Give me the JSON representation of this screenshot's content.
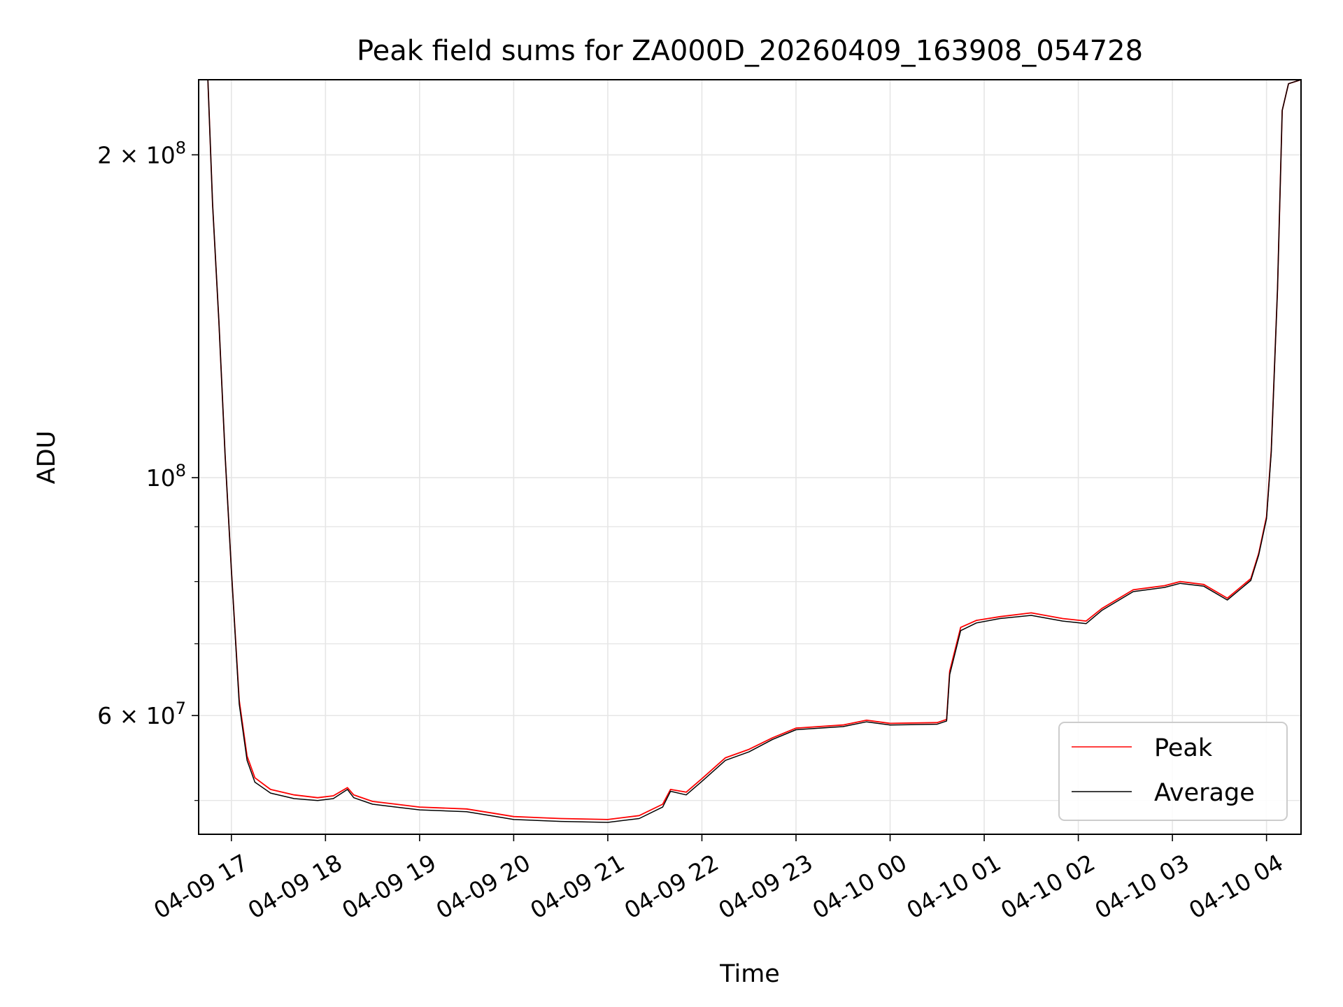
{
  "chart_data": {
    "type": "line",
    "title": "Peak field sums for ZA000D_20260409_163908_054728",
    "xlabel": "Time",
    "ylabel": "ADU",
    "yscale": "log",
    "xlim": [
      "2026-04-09T16:39:08",
      "2026-04-10T04:22:00"
    ],
    "ylim": [
      46500000,
      235000000
    ],
    "grid": true,
    "legend_position": "lower-right",
    "x_ticks": [
      {
        "t": "2026-04-09T17:00",
        "label": "04-09 17"
      },
      {
        "t": "2026-04-09T18:00",
        "label": "04-09 18"
      },
      {
        "t": "2026-04-09T19:00",
        "label": "04-09 19"
      },
      {
        "t": "2026-04-09T20:00",
        "label": "04-09 20"
      },
      {
        "t": "2026-04-09T21:00",
        "label": "04-09 21"
      },
      {
        "t": "2026-04-09T22:00",
        "label": "04-09 22"
      },
      {
        "t": "2026-04-09T23:00",
        "label": "04-09 23"
      },
      {
        "t": "2026-04-10T00:00",
        "label": "04-10 00"
      },
      {
        "t": "2026-04-10T01:00",
        "label": "04-10 01"
      },
      {
        "t": "2026-04-10T02:00",
        "label": "04-10 02"
      },
      {
        "t": "2026-04-10T03:00",
        "label": "04-10 03"
      },
      {
        "t": "2026-04-10T04:00",
        "label": "04-10 04"
      }
    ],
    "y_major_ticks": [
      {
        "value": 60000000,
        "mantissa": "6",
        "exp": "7"
      },
      {
        "value": 100000000,
        "mantissa": "",
        "exp": "8"
      },
      {
        "value": 200000000,
        "mantissa": "2",
        "exp": "8"
      }
    ],
    "y_minor_ticks": [
      50000000,
      70000000,
      80000000,
      90000000
    ],
    "series": [
      {
        "name": "Peak",
        "color": "#ff0000",
        "points": [
          [
            "2026-04-09T16:39:08",
            235000000
          ],
          [
            "2026-04-09T16:45",
            235000000
          ],
          [
            "2026-04-09T16:48",
            180000000
          ],
          [
            "2026-04-09T16:52",
            140000000
          ],
          [
            "2026-04-09T16:56",
            105000000
          ],
          [
            "2026-04-09T17:00",
            82000000
          ],
          [
            "2026-04-09T17:05",
            62000000
          ],
          [
            "2026-04-09T17:10",
            55000000
          ],
          [
            "2026-04-09T17:15",
            52500000
          ],
          [
            "2026-04-09T17:25",
            51200000
          ],
          [
            "2026-04-09T17:40",
            50600000
          ],
          [
            "2026-04-09T17:55",
            50300000
          ],
          [
            "2026-04-09T18:05",
            50500000
          ],
          [
            "2026-04-09T18:14",
            51400000
          ],
          [
            "2026-04-09T18:18",
            50600000
          ],
          [
            "2026-04-09T18:30",
            49900000
          ],
          [
            "2026-04-09T18:45",
            49600000
          ],
          [
            "2026-04-09T19:00",
            49300000
          ],
          [
            "2026-04-09T19:30",
            49100000
          ],
          [
            "2026-04-09T19:45",
            48700000
          ],
          [
            "2026-04-09T20:00",
            48300000
          ],
          [
            "2026-04-09T20:30",
            48100000
          ],
          [
            "2026-04-09T21:00",
            48000000
          ],
          [
            "2026-04-09T21:20",
            48400000
          ],
          [
            "2026-04-09T21:35",
            49600000
          ],
          [
            "2026-04-09T21:40",
            51200000
          ],
          [
            "2026-04-09T21:50",
            50900000
          ],
          [
            "2026-04-09T22:00",
            52400000
          ],
          [
            "2026-04-09T22:15",
            54800000
          ],
          [
            "2026-04-09T22:30",
            55800000
          ],
          [
            "2026-04-09T22:45",
            57200000
          ],
          [
            "2026-04-09T23:00",
            58400000
          ],
          [
            "2026-04-09T23:30",
            58800000
          ],
          [
            "2026-04-09T23:45",
            59400000
          ],
          [
            "2026-04-10T00:00",
            59000000
          ],
          [
            "2026-04-10T00:30",
            59100000
          ],
          [
            "2026-04-10T00:36",
            59500000
          ],
          [
            "2026-04-10T00:38",
            66000000
          ],
          [
            "2026-04-10T00:45",
            72500000
          ],
          [
            "2026-04-10T00:55",
            73600000
          ],
          [
            "2026-04-10T01:10",
            74200000
          ],
          [
            "2026-04-10T01:30",
            74800000
          ],
          [
            "2026-04-10T01:50",
            73900000
          ],
          [
            "2026-04-10T02:05",
            73500000
          ],
          [
            "2026-04-10T02:15",
            75500000
          ],
          [
            "2026-04-10T02:35",
            78600000
          ],
          [
            "2026-04-10T02:55",
            79300000
          ],
          [
            "2026-04-10T03:05",
            80000000
          ],
          [
            "2026-04-10T03:20",
            79500000
          ],
          [
            "2026-04-10T03:35",
            77200000
          ],
          [
            "2026-04-10T03:50",
            80500000
          ],
          [
            "2026-04-10T03:55",
            85000000
          ],
          [
            "2026-04-10T04:00",
            92000000
          ],
          [
            "2026-04-10T04:03",
            106000000
          ],
          [
            "2026-04-10T04:07",
            150000000
          ],
          [
            "2026-04-10T04:10",
            220000000
          ],
          [
            "2026-04-10T04:14",
            233000000
          ],
          [
            "2026-04-10T04:22",
            235000000
          ]
        ]
      },
      {
        "name": "Average",
        "color": "#000000",
        "points": [
          [
            "2026-04-09T16:39:08",
            235000000
          ],
          [
            "2026-04-09T16:45",
            235000000
          ],
          [
            "2026-04-09T16:48",
            180000000
          ],
          [
            "2026-04-09T16:52",
            140000000
          ],
          [
            "2026-04-09T16:56",
            105000000
          ],
          [
            "2026-04-09T17:00",
            82000000
          ],
          [
            "2026-04-09T17:05",
            61500000
          ],
          [
            "2026-04-09T17:10",
            54500000
          ],
          [
            "2026-04-09T17:15",
            52000000
          ],
          [
            "2026-04-09T17:25",
            50800000
          ],
          [
            "2026-04-09T17:40",
            50200000
          ],
          [
            "2026-04-09T17:55",
            50000000
          ],
          [
            "2026-04-09T18:05",
            50200000
          ],
          [
            "2026-04-09T18:14",
            51200000
          ],
          [
            "2026-04-09T18:18",
            50300000
          ],
          [
            "2026-04-09T18:30",
            49600000
          ],
          [
            "2026-04-09T18:45",
            49300000
          ],
          [
            "2026-04-09T19:00",
            49000000
          ],
          [
            "2026-04-09T19:30",
            48800000
          ],
          [
            "2026-04-09T19:45",
            48400000
          ],
          [
            "2026-04-09T20:00",
            48000000
          ],
          [
            "2026-04-09T20:30",
            47800000
          ],
          [
            "2026-04-09T21:00",
            47700000
          ],
          [
            "2026-04-09T21:20",
            48100000
          ],
          [
            "2026-04-09T21:35",
            49300000
          ],
          [
            "2026-04-09T21:40",
            51000000
          ],
          [
            "2026-04-09T21:50",
            50600000
          ],
          [
            "2026-04-09T22:00",
            52100000
          ],
          [
            "2026-04-09T22:15",
            54500000
          ],
          [
            "2026-04-09T22:30",
            55500000
          ],
          [
            "2026-04-09T22:45",
            57000000
          ],
          [
            "2026-04-09T23:00",
            58200000
          ],
          [
            "2026-04-09T23:30",
            58600000
          ],
          [
            "2026-04-09T23:45",
            59200000
          ],
          [
            "2026-04-10T00:00",
            58800000
          ],
          [
            "2026-04-10T00:30",
            58900000
          ],
          [
            "2026-04-10T00:36",
            59300000
          ],
          [
            "2026-04-10T00:38",
            65500000
          ],
          [
            "2026-04-10T00:45",
            72000000
          ],
          [
            "2026-04-10T00:55",
            73200000
          ],
          [
            "2026-04-10T01:10",
            73900000
          ],
          [
            "2026-04-10T01:30",
            74400000
          ],
          [
            "2026-04-10T01:50",
            73500000
          ],
          [
            "2026-04-10T02:05",
            73100000
          ],
          [
            "2026-04-10T02:15",
            75200000
          ],
          [
            "2026-04-10T02:35",
            78300000
          ],
          [
            "2026-04-10T02:55",
            79000000
          ],
          [
            "2026-04-10T03:05",
            79700000
          ],
          [
            "2026-04-10T03:20",
            79200000
          ],
          [
            "2026-04-10T03:35",
            76900000
          ],
          [
            "2026-04-10T03:50",
            80200000
          ],
          [
            "2026-04-10T03:55",
            84700000
          ],
          [
            "2026-04-10T04:00",
            91600000
          ],
          [
            "2026-04-10T04:03",
            105500000
          ],
          [
            "2026-04-10T04:07",
            150000000
          ],
          [
            "2026-04-10T04:10",
            220000000
          ],
          [
            "2026-04-10T04:14",
            233000000
          ],
          [
            "2026-04-10T04:22",
            235000000
          ]
        ]
      }
    ]
  }
}
